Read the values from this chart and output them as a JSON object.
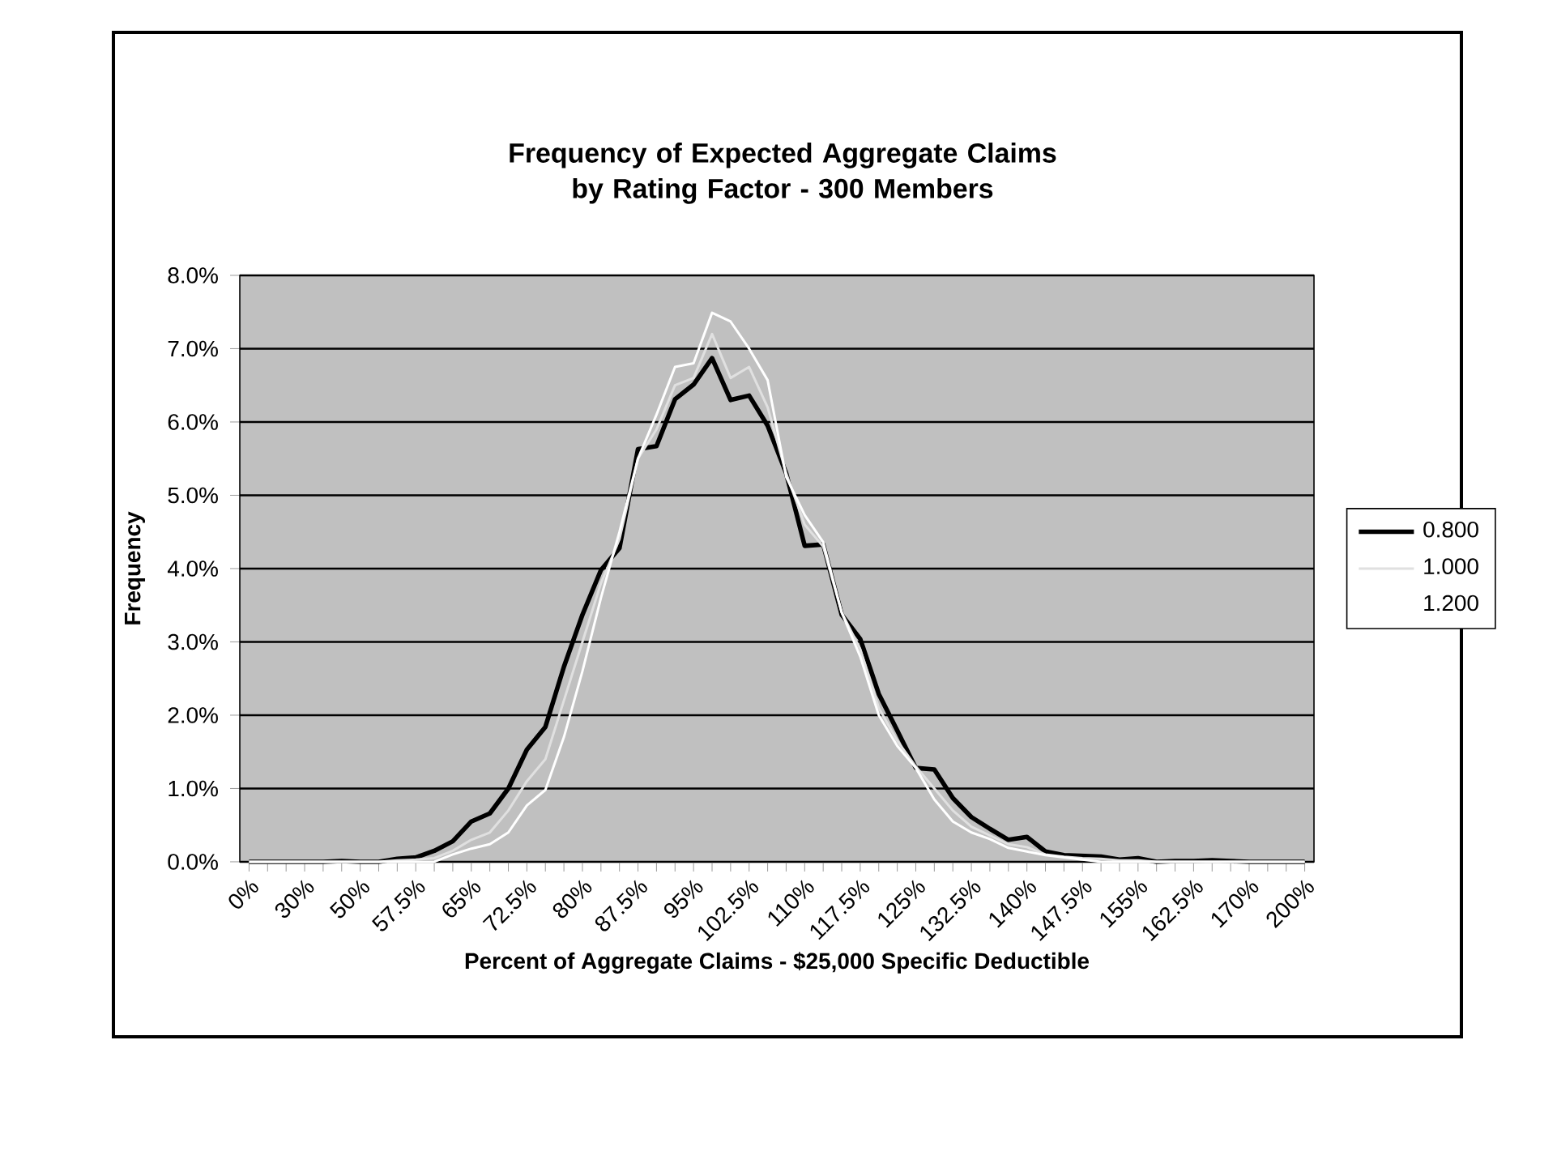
{
  "chart_data": {
    "type": "line",
    "title": "Frequency of Expected Aggregate Claims\nby Rating Factor - 300 Members",
    "xlabel": "Percent of Aggregate Claims - $25,000 Specific Deductible",
    "ylabel": "Frequency",
    "categories": [
      "0%",
      null,
      null,
      "30%",
      null,
      null,
      "50%",
      null,
      null,
      "57.5%",
      null,
      null,
      "65%",
      null,
      null,
      "72.5%",
      null,
      null,
      "80%",
      null,
      null,
      "87.5%",
      null,
      null,
      "95%",
      null,
      null,
      "102.5%",
      null,
      null,
      "110%",
      null,
      null,
      "117.5%",
      null,
      null,
      "125%",
      null,
      null,
      "132.5%",
      null,
      null,
      "140%",
      null,
      null,
      "147.5%",
      null,
      null,
      "155%",
      null,
      null,
      "162.5%",
      null,
      null,
      "170%",
      null,
      null,
      "200%"
    ],
    "series": [
      {
        "name": "0.800",
        "color": "#000000",
        "values": [
          0,
          0,
          0,
          0,
          0,
          0.01,
          0,
          0,
          0.04,
          0.06,
          0.15,
          0.28,
          0.55,
          0.66,
          1.0,
          1.53,
          1.84,
          2.66,
          3.37,
          3.98,
          4.28,
          5.63,
          5.67,
          6.31,
          6.51,
          6.87,
          6.3,
          6.36,
          5.95,
          5.3,
          4.31,
          4.33,
          3.37,
          3.04,
          2.29,
          1.79,
          1.28,
          1.26,
          0.87,
          0.61,
          0.45,
          0.3,
          0.34,
          0.14,
          0.09,
          0.08,
          0.07,
          0.03,
          0.05,
          0,
          0.01,
          0.01,
          0.02,
          0.01,
          0,
          0,
          0,
          0
        ]
      },
      {
        "name": "1.000",
        "color": "#e0e0e0",
        "values": [
          0,
          0,
          0,
          0,
          0,
          0,
          0,
          0,
          0.02,
          0.03,
          0.05,
          0.15,
          0.3,
          0.4,
          0.7,
          1.1,
          1.4,
          2.2,
          3.0,
          3.8,
          4.4,
          5.5,
          5.9,
          6.5,
          6.6,
          7.2,
          6.6,
          6.75,
          6.2,
          5.3,
          4.6,
          4.3,
          3.4,
          2.9,
          2.1,
          1.65,
          1.3,
          1.0,
          0.7,
          0.48,
          0.36,
          0.24,
          0.2,
          0.1,
          0.07,
          0.05,
          0.04,
          0.02,
          0.02,
          0,
          0,
          0,
          0,
          0,
          0,
          0,
          0,
          0
        ]
      },
      {
        "name": "1.200",
        "color": "#ffffff",
        "values": [
          0,
          0,
          0,
          0,
          0,
          0,
          0,
          0,
          0,
          0,
          0,
          0.1,
          0.18,
          0.24,
          0.4,
          0.77,
          0.98,
          1.7,
          2.6,
          3.6,
          4.5,
          5.5,
          6.1,
          6.75,
          6.8,
          7.49,
          7.37,
          7.0,
          6.57,
          5.25,
          4.73,
          4.36,
          3.4,
          2.8,
          2.0,
          1.58,
          1.28,
          0.85,
          0.55,
          0.4,
          0.31,
          0.19,
          0.14,
          0.09,
          0.06,
          0.03,
          0,
          0,
          0,
          0,
          0,
          0,
          0,
          0,
          0,
          0,
          0,
          0
        ]
      }
    ],
    "ylim": [
      0,
      8
    ],
    "yticks": [
      {
        "value": 0,
        "label": "0.0%"
      },
      {
        "value": 1,
        "label": "1.0%"
      },
      {
        "value": 2,
        "label": "2.0%"
      },
      {
        "value": 3,
        "label": "3.0%"
      },
      {
        "value": 4,
        "label": "4.0%"
      },
      {
        "value": 5,
        "label": "5.0%"
      },
      {
        "value": 6,
        "label": "6.0%"
      },
      {
        "value": 7,
        "label": "7.0%"
      },
      {
        "value": 8,
        "label": "8.0%"
      }
    ],
    "grid": "y",
    "legend": "right",
    "marker": "none",
    "line_style": "solid"
  }
}
